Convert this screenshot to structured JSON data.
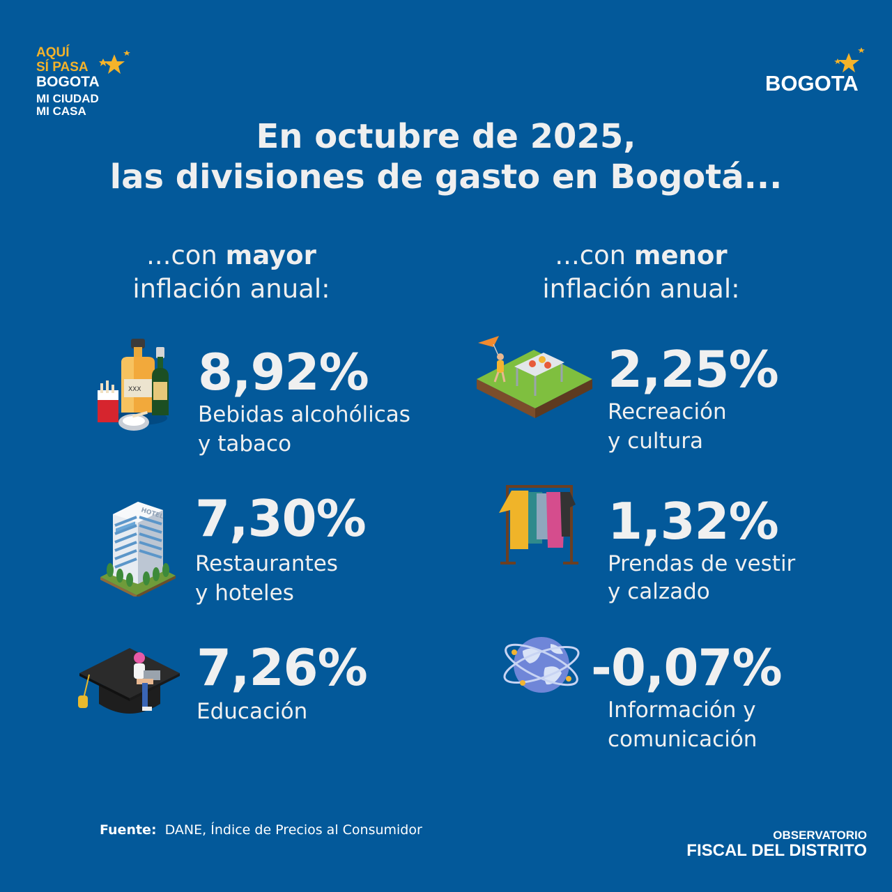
{
  "logo_left": {
    "line1": "AQUÍ",
    "line2": "SÍ PASA",
    "line3": "BOGOTA",
    "line4": "MI CIUDAD",
    "line5": "MI CASA"
  },
  "logo_right": {
    "text": "BOGOTA"
  },
  "title": {
    "line1": "En octubre de 2025,",
    "line2": "las divisiones de gasto en Bogotá..."
  },
  "left_heading": {
    "pre": "...con ",
    "bold": "mayor",
    "line2": "inflación anual:"
  },
  "right_heading": {
    "pre": "...con ",
    "bold": "menor",
    "line2": "inflación anual:"
  },
  "highest": [
    {
      "value": "8,92%",
      "label1": "Bebidas alcohólicas",
      "label2": "y tabaco",
      "icon": "alcohol-tobacco-icon"
    },
    {
      "value": "7,30%",
      "label1": "Restaurantes",
      "label2": "y hoteles",
      "icon": "hotel-icon"
    },
    {
      "value": "7,26%",
      "label1": "Educación",
      "label2": "",
      "icon": "graduation-cap-icon"
    }
  ],
  "lowest": [
    {
      "value": "2,25%",
      "label1": "Recreación",
      "label2": "y cultura",
      "icon": "park-recreation-icon"
    },
    {
      "value": "1,32%",
      "label1": "Prendas de vestir",
      "label2": "y calzado",
      "icon": "clothes-rack-icon"
    },
    {
      "value": "-0,07%",
      "label1": "Información y",
      "label2": "comunicación",
      "icon": "globe-network-icon"
    }
  ],
  "source": {
    "label": "Fuente:",
    "text": "DANE, Índice de Precios al Consumidor"
  },
  "footer_brand": {
    "line1": "OBSERVATORIO",
    "line2": "FISCAL DEL DISTRITO"
  },
  "colors": {
    "background": "#03599a",
    "accent_yellow": "#f5b32a",
    "text": "#f0f0f0"
  }
}
